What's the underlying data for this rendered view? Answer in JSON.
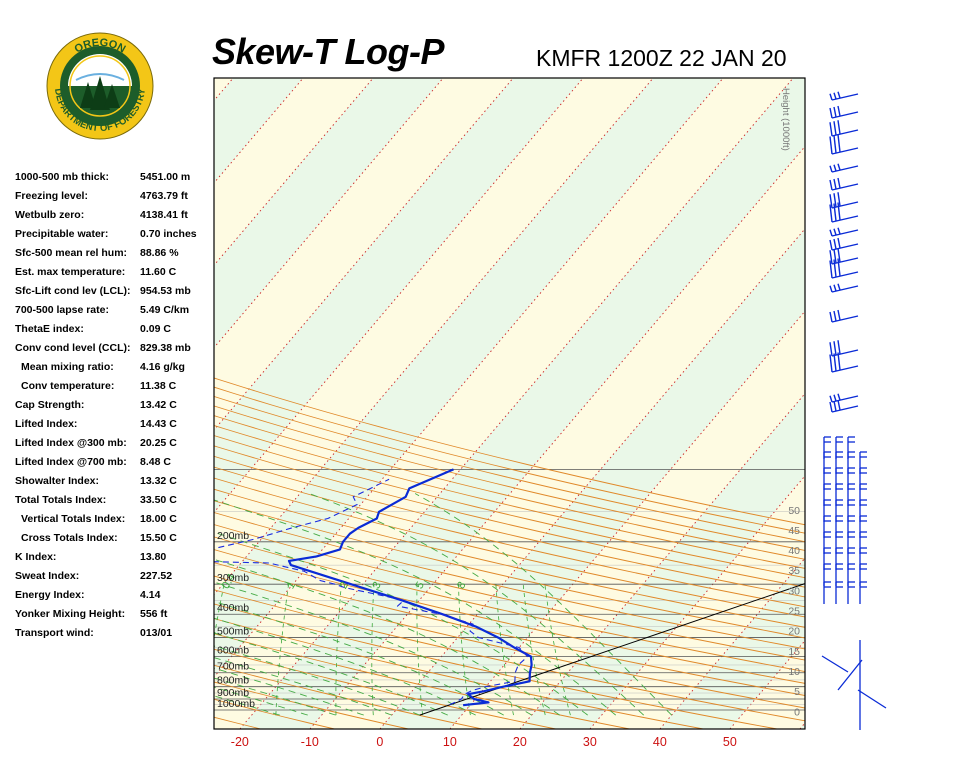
{
  "header": {
    "title": "Skew-T Log-P",
    "station_time": "KMFR 1200Z 22 JAN 20"
  },
  "logo": {
    "top_text": "OREGON",
    "bottom_text": "DEPARTMENT OF FORESTRY"
  },
  "indices": [
    {
      "label": "1000-500 mb thick:",
      "value": "5451.00 m",
      "indent": false
    },
    {
      "label": "Freezing level:",
      "value": "4763.79 ft",
      "indent": false
    },
    {
      "label": "Wetbulb zero:",
      "value": "4138.41 ft",
      "indent": false
    },
    {
      "label": "Precipitable water:",
      "value": "0.70 inches",
      "indent": false
    },
    {
      "label": "Sfc-500 mean rel hum:",
      "value": "88.86 %",
      "indent": false
    },
    {
      "label": "Est. max temperature:",
      "value": "11.60 C",
      "indent": false
    },
    {
      "label": "Sfc-Lift cond lev (LCL):",
      "value": "954.53 mb",
      "indent": false
    },
    {
      "label": "700-500 lapse rate:",
      "value": "5.49 C/km",
      "indent": false
    },
    {
      "label": "ThetaE index:",
      "value": "0.09 C",
      "indent": false
    },
    {
      "label": "Conv cond level (CCL):",
      "value": "829.38 mb",
      "indent": false
    },
    {
      "label": "Mean mixing ratio:",
      "value": "4.16 g/kg",
      "indent": true
    },
    {
      "label": "Conv temperature:",
      "value": "11.38 C",
      "indent": true
    },
    {
      "label": "Cap Strength:",
      "value": "13.42 C",
      "indent": false
    },
    {
      "label": "Lifted Index:",
      "value": "14.43 C",
      "indent": false
    },
    {
      "label": "Lifted Index @300 mb:",
      "value": "20.25 C",
      "indent": false
    },
    {
      "label": "Lifted Index @700 mb:",
      "value": "8.48 C",
      "indent": false
    },
    {
      "label": "Showalter Index:",
      "value": "13.32 C",
      "indent": false
    },
    {
      "label": "Total Totals Index:",
      "value": "33.50 C",
      "indent": false
    },
    {
      "label": "Vertical Totals Index:",
      "value": "18.00 C",
      "indent": true
    },
    {
      "label": "Cross Totals Index:",
      "value": "15.50 C",
      "indent": true
    },
    {
      "label": "K Index:",
      "value": "13.80",
      "indent": false
    },
    {
      "label": "Sweat Index:",
      "value": "227.52",
      "indent": false
    },
    {
      "label": "Energy Index:",
      "value": "4.14",
      "indent": false
    },
    {
      "label": "Yonker Mixing Height:",
      "value": "556 ft",
      "indent": false
    },
    {
      "label": "Transport wind:",
      "value": "013/01",
      "indent": false
    }
  ],
  "chart_data": {
    "type": "line",
    "x_ticks": [
      "-20",
      "-10",
      "0",
      "10",
      "20",
      "30",
      "40",
      "50"
    ],
    "x_tick_values": [
      -20,
      -10,
      0,
      10,
      20,
      30,
      40,
      50
    ],
    "pressure_levels": [
      "200mb",
      "300mb",
      "400mb",
      "500mb",
      "600mb",
      "700mb",
      "800mb",
      "900mb",
      "1000mb"
    ],
    "height_axis_label": "Height (1000ft)",
    "height_ticks": [
      "0",
      "5",
      "10",
      "15",
      "20",
      "25",
      "30",
      "35",
      "40",
      "45",
      "50"
    ],
    "mixing_ratio_labels": [
      "0.4",
      "1",
      "2",
      "3",
      "5",
      "8"
    ],
    "colors": {
      "temperature": "#0a2bd6",
      "dewpoint": "#1a2be0",
      "dry_adiabat": "#e0892a",
      "moist_adiabat": "#44aa44",
      "mixing_ratio": "#3aa83a",
      "isotherm": "#cc2222",
      "parcel": "#000000",
      "band_green": "#eaf8e8",
      "band_yellow": "#fefbe2",
      "wind_barb": "#0a2bd6",
      "x_tick_text": "#cc1111"
    },
    "series": [
      {
        "name": "",
        "role": "temperature",
        "points": [
          {
            "p": 955,
            "t": 9.0
          },
          {
            "p": 930,
            "t": 12.3
          },
          {
            "p": 900,
            "t": 9.8
          },
          {
            "p": 860,
            "t": 8.4
          },
          {
            "p": 835,
            "t": 10.3
          },
          {
            "p": 800,
            "t": 12.5
          },
          {
            "p": 760,
            "t": 15.6
          },
          {
            "p": 700,
            "t": 14.6
          },
          {
            "p": 650,
            "t": 13.9
          },
          {
            "p": 600,
            "t": 12.8
          },
          {
            "p": 550,
            "t": 9.3
          },
          {
            "p": 500,
            "t": 5.8
          },
          {
            "p": 450,
            "t": 1.3
          },
          {
            "p": 400,
            "t": -5.0
          },
          {
            "p": 350,
            "t": -12.5
          },
          {
            "p": 300,
            "t": -21.7
          },
          {
            "p": 250,
            "t": -32.6
          },
          {
            "p": 240,
            "t": -33.4
          },
          {
            "p": 230,
            "t": -30.0
          },
          {
            "p": 215,
            "t": -27.5
          },
          {
            "p": 200,
            "t": -28.0
          },
          {
            "p": 185,
            "t": -28.0
          },
          {
            "p": 175,
            "t": -27.5
          },
          {
            "p": 160,
            "t": -26.0
          },
          {
            "p": 150,
            "t": -26.5
          },
          {
            "p": 130,
            "t": -24.5
          },
          {
            "p": 120,
            "t": -25.0
          },
          {
            "p": 100,
            "t": -21.0
          }
        ]
      },
      {
        "name": "",
        "role": "dewpoint",
        "points": [
          {
            "p": 950,
            "t": 7.0
          },
          {
            "p": 930,
            "t": 7.5
          },
          {
            "p": 900,
            "t": 8.0
          },
          {
            "p": 860,
            "t": 7.9
          },
          {
            "p": 830,
            "t": 8.5
          },
          {
            "p": 800,
            "t": 10.0
          },
          {
            "p": 760,
            "t": 13.5
          },
          {
            "p": 700,
            "t": 12.5
          },
          {
            "p": 650,
            "t": 12.0
          },
          {
            "p": 600,
            "t": 12.3
          },
          {
            "p": 550,
            "t": 10.0
          },
          {
            "p": 500,
            "t": 3.0
          },
          {
            "p": 470,
            "t": 1.0
          },
          {
            "p": 440,
            "t": 0.6
          },
          {
            "p": 400,
            "t": -5.2
          },
          {
            "p": 370,
            "t": -12.4
          },
          {
            "p": 350,
            "t": -12.2
          },
          {
            "p": 330,
            "t": -17.0
          },
          {
            "p": 310,
            "t": -22.2
          },
          {
            "p": 300,
            "t": -24.0
          },
          {
            "p": 290,
            "t": -26.5
          },
          {
            "p": 265,
            "t": -30.0
          },
          {
            "p": 245,
            "t": -36.0
          },
          {
            "p": 240,
            "t": -49.0
          },
          {
            "p": 230,
            "t": -51.0
          },
          {
            "p": 215,
            "t": -46.0
          },
          {
            "p": 195,
            "t": -41.0
          },
          {
            "p": 175,
            "t": -37.0
          },
          {
            "p": 160,
            "t": -33.0
          },
          {
            "p": 140,
            "t": -30.5
          },
          {
            "p": 130,
            "t": -32.0
          },
          {
            "p": 110,
            "t": -29.0
          }
        ]
      }
    ],
    "parcel_path": [
      {
        "p": 1050,
        "t": 4.0
      },
      {
        "p": 100,
        "t": 77.0
      }
    ]
  }
}
